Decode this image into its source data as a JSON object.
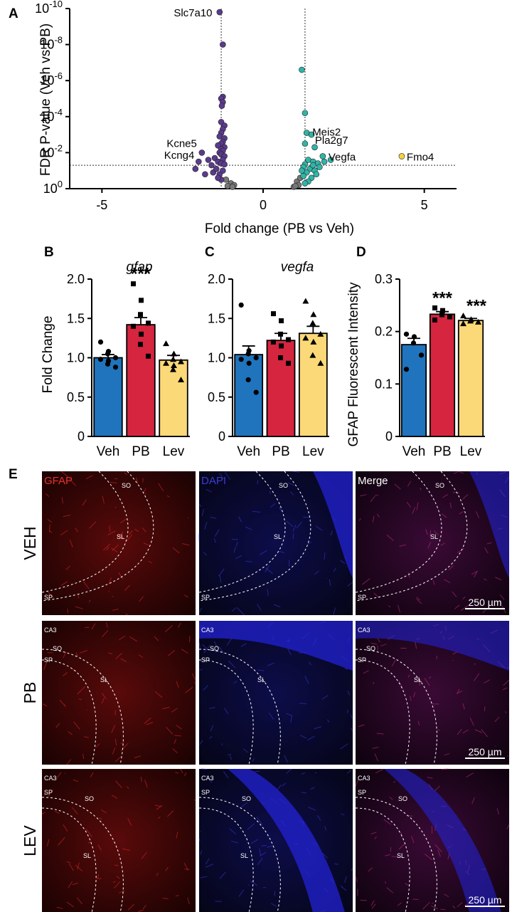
{
  "panel_letters": {
    "a": "A",
    "b": "B",
    "c": "C",
    "d": "D",
    "e": "E"
  },
  "colors": {
    "veh": "#1f74bd",
    "pb": "#d6253f",
    "lev": "#fcd978",
    "down": "#5b3a8e",
    "up": "#2fb5a7",
    "highlight": "#f5d33b",
    "neutral": "#777777"
  },
  "chart_data": [
    {
      "id": "A",
      "type": "scatter",
      "title": "",
      "xlabel": "Fold change (PB vs Veh)",
      "ylabel": "FDR P-value (Veh vs PB)",
      "xlim": [
        -6,
        6
      ],
      "xticks": [
        -5,
        0,
        5
      ],
      "xtick_labels": [
        "-5",
        "0",
        "5"
      ],
      "yscale": "log10",
      "ylim_log10": [
        0,
        -10
      ],
      "yticks_log10": [
        -10,
        -8,
        -6,
        -4,
        -2,
        0
      ],
      "ytick_labels": [
        {
          "base": "10",
          "exp": "-10"
        },
        {
          "base": "10",
          "exp": "-8"
        },
        {
          "base": "10",
          "exp": "-6"
        },
        {
          "base": "10",
          "exp": "-4"
        },
        {
          "base": "10",
          "exp": "-2"
        },
        {
          "base": "10",
          "exp": "0"
        }
      ],
      "fold_thresholds": [
        -1.3,
        1.3
      ],
      "p_threshold_log10": -1.3,
      "annotated_genes": [
        {
          "gene": "Slc7a10",
          "x": -1.4,
          "log10p": -9.8,
          "group": "down"
        },
        {
          "gene": "Kcne5",
          "x": -1.9,
          "log10p": -2.0,
          "group": "down"
        },
        {
          "gene": "Kcng4",
          "x": -2.0,
          "log10p": -1.5,
          "group": "down"
        },
        {
          "gene": "Meis2",
          "x": 1.35,
          "log10p": -3.1,
          "group": "up"
        },
        {
          "gene": "Pla2g7",
          "x": 1.3,
          "log10p": -2.5,
          "group": "up"
        },
        {
          "gene": "Vegfa",
          "x": 1.85,
          "log10p": -1.8,
          "group": "up"
        },
        {
          "gene": "Fmo4",
          "x": 4.3,
          "log10p": -1.8,
          "group": "highlight"
        }
      ],
      "down_points": [
        {
          "x": -1.35,
          "log10p": -9.8
        },
        {
          "x": -1.25,
          "log10p": -8.0
        },
        {
          "x": -1.25,
          "log10p": -5.1
        },
        {
          "x": -1.3,
          "log10p": -5.0
        },
        {
          "x": -1.25,
          "log10p": -4.8
        },
        {
          "x": -1.28,
          "log10p": -4.6
        },
        {
          "x": -1.3,
          "log10p": -3.7
        },
        {
          "x": -1.2,
          "log10p": -3.5
        },
        {
          "x": -1.25,
          "log10p": -3.3
        },
        {
          "x": -1.3,
          "log10p": -3.1
        },
        {
          "x": -1.35,
          "log10p": -2.9
        },
        {
          "x": -1.2,
          "log10p": -2.8
        },
        {
          "x": -1.25,
          "log10p": -2.6
        },
        {
          "x": -1.3,
          "log10p": -2.5
        },
        {
          "x": -1.4,
          "log10p": -2.4
        },
        {
          "x": -1.2,
          "log10p": -2.3
        },
        {
          "x": -1.3,
          "log10p": -2.2
        },
        {
          "x": -1.25,
          "log10p": -2.1
        },
        {
          "x": -1.35,
          "log10p": -2.0
        },
        {
          "x": -1.3,
          "log10p": -1.9
        },
        {
          "x": -1.2,
          "log10p": -1.8
        },
        {
          "x": -1.5,
          "log10p": -1.7
        },
        {
          "x": -1.25,
          "log10p": -1.6
        },
        {
          "x": -1.4,
          "log10p": -1.5
        },
        {
          "x": -1.3,
          "log10p": -1.4
        },
        {
          "x": -1.2,
          "log10p": -1.35
        },
        {
          "x": -1.7,
          "log10p": -1.6
        },
        {
          "x": -1.9,
          "log10p": -2.0
        },
        {
          "x": -2.0,
          "log10p": -1.5
        },
        {
          "x": -1.6,
          "log10p": -1.3
        },
        {
          "x": -2.1,
          "log10p": -1.1
        },
        {
          "x": -1.55,
          "log10p": -0.9
        },
        {
          "x": -1.8,
          "log10p": -0.8
        },
        {
          "x": -1.45,
          "log10p": -1.1
        },
        {
          "x": -1.35,
          "log10p": -0.8
        },
        {
          "x": -1.3,
          "log10p": -0.5
        },
        {
          "x": -1.25,
          "log10p": -1.0
        },
        {
          "x": -1.4,
          "log10p": -0.6
        }
      ],
      "up_points": [
        {
          "x": 1.2,
          "log10p": -6.6
        },
        {
          "x": 1.3,
          "log10p": -4.2
        },
        {
          "x": 1.35,
          "log10p": -3.1
        },
        {
          "x": 1.5,
          "log10p": -3.0
        },
        {
          "x": 1.3,
          "log10p": -2.5
        },
        {
          "x": 1.6,
          "log10p": -2.3
        },
        {
          "x": 1.85,
          "log10p": -1.8
        },
        {
          "x": 1.4,
          "log10p": -1.6
        },
        {
          "x": 1.55,
          "log10p": -1.5
        },
        {
          "x": 1.7,
          "log10p": -1.4
        },
        {
          "x": 1.3,
          "log10p": -1.35
        },
        {
          "x": 1.25,
          "log10p": -1.2
        },
        {
          "x": 1.45,
          "log10p": -1.1
        },
        {
          "x": 1.6,
          "log10p": -1.0
        },
        {
          "x": 1.35,
          "log10p": -0.9
        },
        {
          "x": 1.75,
          "log10p": -1.2
        },
        {
          "x": 1.25,
          "log10p": -0.7
        },
        {
          "x": 1.5,
          "log10p": -0.6
        },
        {
          "x": 1.4,
          "log10p": -0.4
        },
        {
          "x": 1.3,
          "log10p": -0.3
        },
        {
          "x": 1.65,
          "log10p": -0.8
        },
        {
          "x": 1.2,
          "log10p": -1.0
        },
        {
          "x": 1.55,
          "log10p": -1.3
        },
        {
          "x": 1.9,
          "log10p": -1.5
        },
        {
          "x": 2.1,
          "log10p": -1.6
        }
      ],
      "highlight_points": [
        {
          "x": 4.3,
          "log10p": -1.8
        }
      ],
      "neutral_points": [
        {
          "x": -1.15,
          "log10p": -0.5
        },
        {
          "x": -1.0,
          "log10p": -0.3
        },
        {
          "x": -0.9,
          "log10p": -0.2
        },
        {
          "x": -1.1,
          "log10p": -0.15
        },
        {
          "x": -0.95,
          "log10p": -0.1
        },
        {
          "x": 1.05,
          "log10p": -0.4
        },
        {
          "x": 1.1,
          "log10p": -0.2
        },
        {
          "x": 0.95,
          "log10p": -0.1
        },
        {
          "x": 1.15,
          "log10p": -0.6
        },
        {
          "x": 1.0,
          "log10p": -0.15
        }
      ]
    },
    {
      "id": "B",
      "type": "bar",
      "title": "gfap",
      "ylabel": "Fold Change",
      "categories": [
        "Veh",
        "PB",
        "Lev"
      ],
      "values": [
        1.0,
        1.42,
        0.97
      ],
      "sem": [
        0.04,
        0.09,
        0.06
      ],
      "ylim": [
        0,
        2.0
      ],
      "yticks": [
        0,
        0.5,
        1.0,
        1.5,
        2.0
      ],
      "ytick_labels": [
        "0",
        "0.5",
        "1.0",
        "1.5",
        "2.0"
      ],
      "significance": [
        "",
        "***",
        ""
      ],
      "markers": [
        "circle",
        "square",
        "triangle"
      ],
      "points": [
        [
          1.2,
          1.08,
          1.05,
          1.0,
          0.98,
          0.96,
          0.92,
          0.88
        ],
        [
          1.94,
          1.73,
          1.55,
          1.44,
          1.4,
          1.3,
          1.17,
          1.02
        ],
        [
          1.18,
          1.05,
          0.98,
          0.95,
          0.93,
          0.9,
          0.85,
          0.72
        ]
      ]
    },
    {
      "id": "C",
      "type": "bar",
      "title": "vegfa",
      "ylabel": "",
      "categories": [
        "Veh",
        "PB",
        "Lev"
      ],
      "values": [
        1.04,
        1.22,
        1.31
      ],
      "sem": [
        0.11,
        0.09,
        0.09
      ],
      "ylim": [
        0,
        2.0
      ],
      "yticks": [
        0,
        0.5,
        1.0,
        1.5,
        2.0
      ],
      "ytick_labels": [
        "0",
        "0.5",
        "1.0",
        "1.5",
        "2.0"
      ],
      "significance": [
        "",
        "",
        ""
      ],
      "markers": [
        "circle",
        "square",
        "triangle"
      ],
      "points": [
        [
          1.67,
          1.09,
          1.05,
          1.0,
          0.98,
          0.93,
          0.72,
          0.56
        ],
        [
          1.56,
          1.47,
          1.3,
          1.23,
          1.2,
          1.15,
          1.0,
          0.93
        ],
        [
          1.72,
          1.55,
          1.44,
          1.3,
          1.25,
          1.2,
          1.03,
          0.93
        ]
      ]
    },
    {
      "id": "D",
      "type": "bar",
      "title": "",
      "ylabel": "GFAP Fluorescent Intensity",
      "categories": [
        "Veh",
        "PB",
        "Lev"
      ],
      "values": [
        0.175,
        0.233,
        0.221
      ],
      "sem": [
        0.012,
        0.005,
        0.004
      ],
      "ylim": [
        0,
        0.3
      ],
      "yticks": [
        0,
        0.1,
        0.2,
        0.3
      ],
      "ytick_labels": [
        "0",
        "0.1",
        "0.2",
        "0.3"
      ],
      "significance": [
        "",
        "***",
        "***"
      ],
      "markers": [
        "circle",
        "square",
        "triangle"
      ],
      "points": [
        [
          0.195,
          0.19,
          0.178,
          0.155,
          0.128
        ],
        [
          0.245,
          0.24,
          0.232,
          0.228,
          0.222
        ],
        [
          0.23,
          0.223,
          0.22,
          0.218,
          0.215
        ]
      ]
    }
  ],
  "micrograph_panel": {
    "column_labels": [
      "GFAP",
      "DAPI",
      "Merge"
    ],
    "row_labels": [
      "VEH",
      "PB",
      "LEV"
    ],
    "scale_bar_text": "250 µm",
    "regions": {
      "so": "SO",
      "sl": "SL",
      "sp": "SP",
      "ca3": "CA3"
    }
  }
}
